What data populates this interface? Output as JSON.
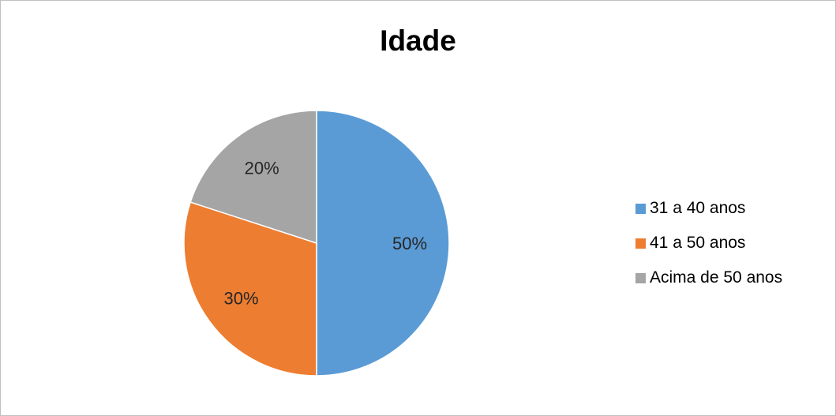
{
  "chart_data": {
    "type": "pie",
    "title": "Idade",
    "slices": [
      {
        "label": "31 a 40 anos",
        "value": 50,
        "display": "50%",
        "color": "#5b9bd5"
      },
      {
        "label": "41 a 50 anos",
        "value": 30,
        "display": "30%",
        "color": "#ed7d31"
      },
      {
        "label": "Acima de 50 anos",
        "value": 20,
        "display": "20%",
        "color": "#a5a5a5"
      }
    ],
    "legend_position": "right",
    "data_labels": "inside"
  }
}
